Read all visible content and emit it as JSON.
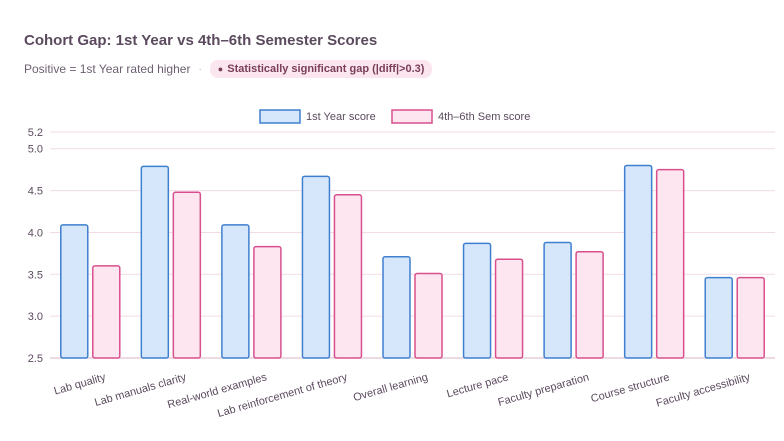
{
  "header": {
    "title": "Cohort Gap: 1st Year vs 4th–6th Semester Scores",
    "subtitle": "Positive = 1st Year rated higher",
    "separator": "·",
    "badge_dot": "●",
    "badge_text": "Statistically significant gap (|diff|>0.3)"
  },
  "colors": {
    "series1_fill": "#d6e7fb",
    "series1_stroke": "#3f7fd0",
    "series2_fill": "#fde6ef",
    "series2_stroke": "#d94f8e",
    "grid": "#f3dbe6",
    "axis": "#d9b7c7"
  },
  "chart_data": {
    "type": "bar",
    "categories": [
      "Lab quality",
      "Lab manuals clarity",
      "Real-world examples",
      "Lab reinforcement of theory",
      "Overall learning",
      "Lecture pace",
      "Faculty preparation",
      "Course structure",
      "Faculty accessibility"
    ],
    "series": [
      {
        "name": "1st Year score",
        "values": [
          4.09,
          4.79,
          4.09,
          4.67,
          3.71,
          3.87,
          3.88,
          4.8,
          3.46
        ]
      },
      {
        "name": "4th–6th Sem score",
        "values": [
          3.6,
          4.48,
          3.83,
          4.45,
          3.51,
          3.68,
          3.77,
          4.75,
          3.46
        ]
      }
    ],
    "ylim": [
      2.5,
      5.2
    ],
    "yticks": [
      2.5,
      3.0,
      3.5,
      4.0,
      4.5,
      5.0,
      5.2
    ],
    "ytick_labels": [
      "2.5",
      "3.0",
      "3.5",
      "4.0",
      "4.5",
      "5.0",
      "5.2"
    ],
    "grid": true,
    "legend_position": "top-center"
  }
}
